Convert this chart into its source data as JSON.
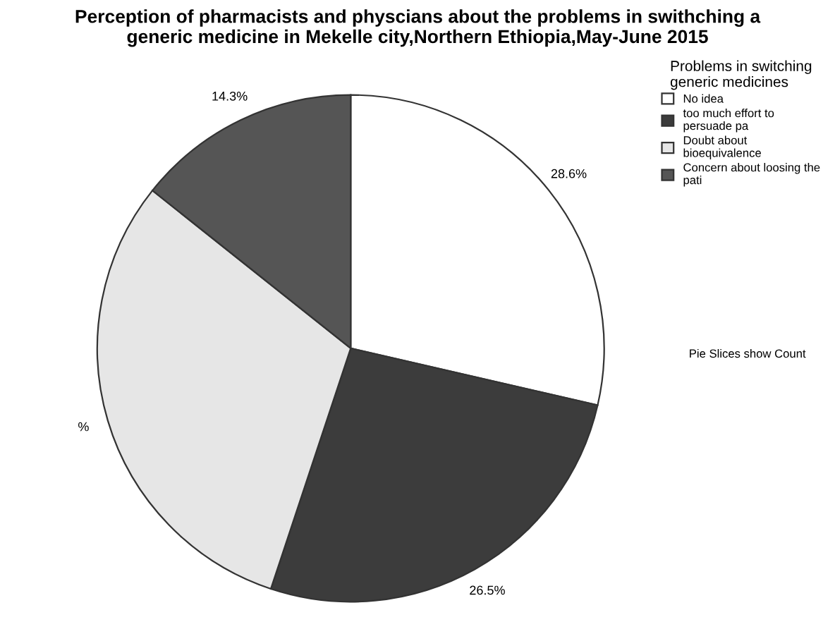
{
  "chart_data": {
    "type": "pie",
    "title": "Perception of pharmacists and physcians about the problems in swithching a\ngeneric medicine in Mekelle city,Northern Ethiopia,May-June 2015",
    "legend_title": "Problems in switching\ngeneric medicines",
    "categories": [
      "No idea",
      "too much effort to\npersuade pa",
      "Doubt about\nbioequivalence",
      "Concern about loosing the\npati"
    ],
    "values": [
      28.6,
      26.5,
      30.6,
      14.3
    ],
    "value_labels": [
      "28.6%",
      "26.5%",
      "%",
      "14.3%"
    ],
    "colors": [
      "#ffffff",
      "#3c3c3c",
      "#e6e6e6",
      "#555555"
    ],
    "legend": "top right",
    "annotations": [
      "Pie Slices show Count"
    ]
  }
}
